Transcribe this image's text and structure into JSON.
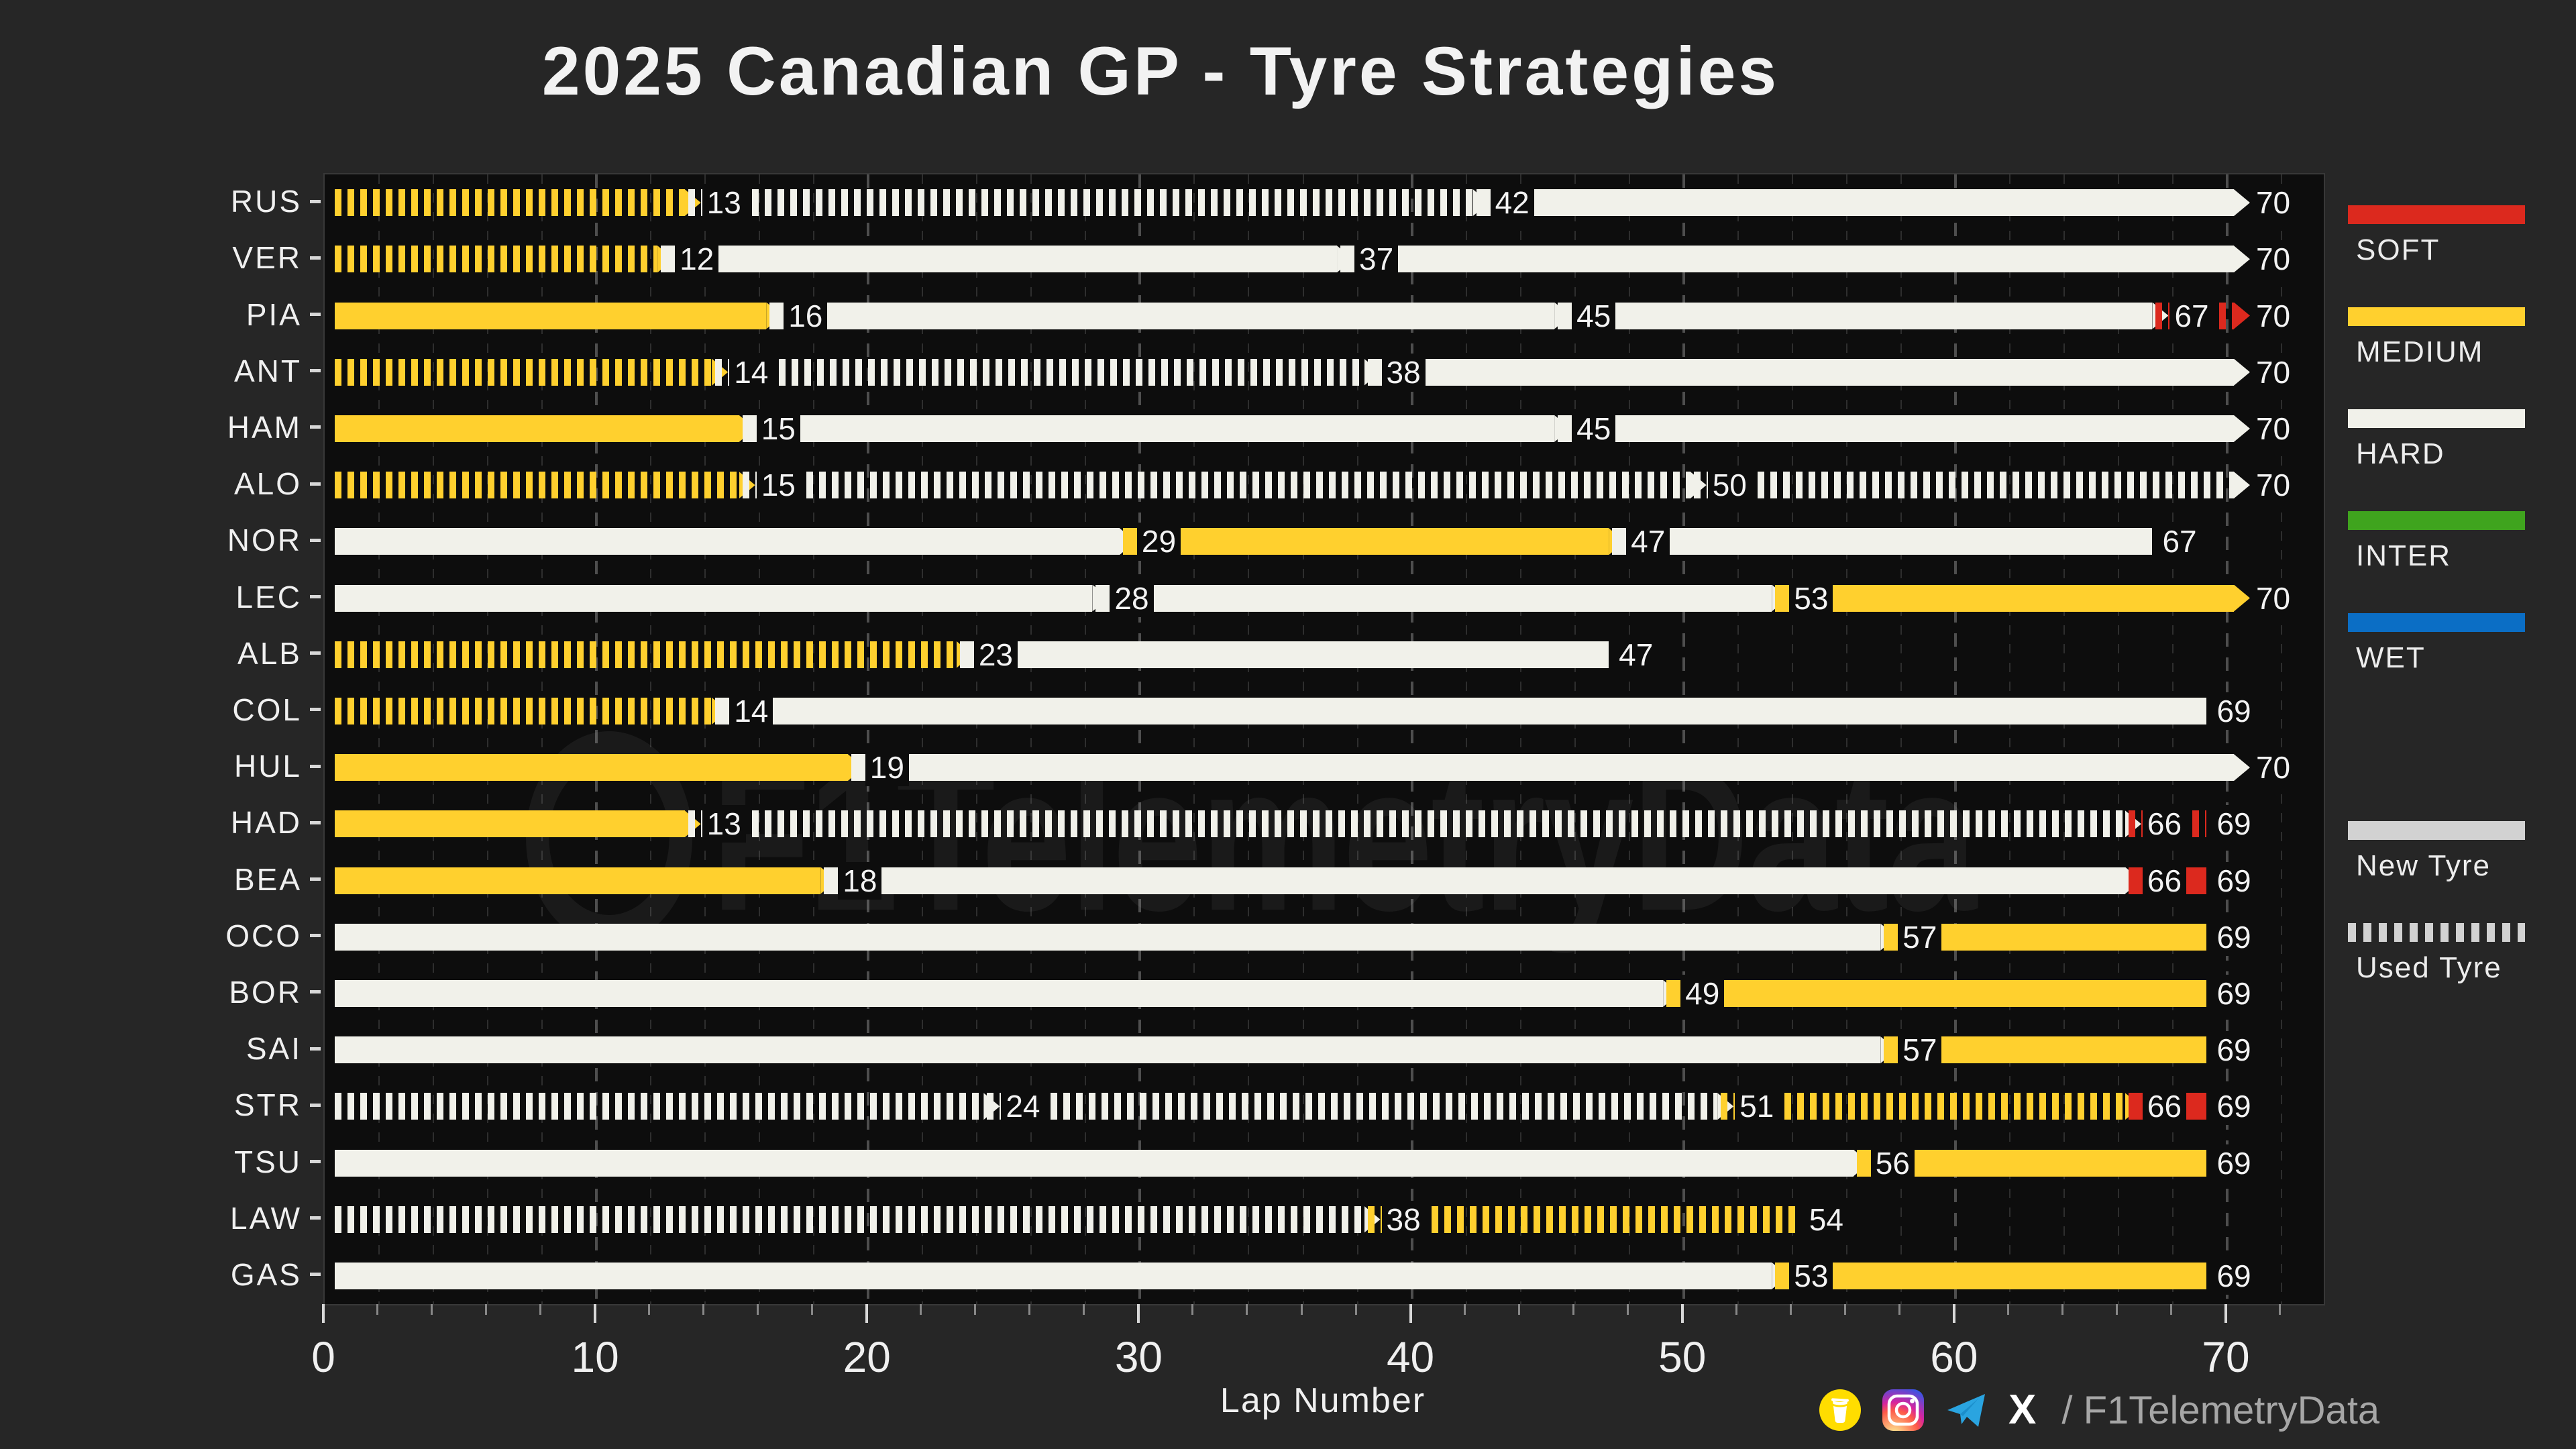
{
  "page": {
    "title": "2025 Canadian GP - Tyre Strategies",
    "xlabel": "Lap Number",
    "watermark_text": "F1TelemetryData",
    "footer_handle": "/ F1TelemetryData",
    "footer_icons": [
      "buymeacoffee-icon",
      "instagram-icon",
      "telegram-icon",
      "x-icon"
    ]
  },
  "colors": {
    "soft": "#dc291e",
    "medium": "#ffd02e",
    "hard": "#f1f1ea",
    "inter": "#3fa41e",
    "wet": "#0b6ec5",
    "legend_gray": "#d2d2d2",
    "fig_bg": "#262626",
    "plot_bg": "#0d0d0d"
  },
  "legend": {
    "compounds": [
      {
        "label": "SOFT",
        "key": "soft"
      },
      {
        "label": "MEDIUM",
        "key": "medium"
      },
      {
        "label": "HARD",
        "key": "hard"
      },
      {
        "label": "INTER",
        "key": "inter"
      },
      {
        "label": "WET",
        "key": "wet"
      }
    ],
    "usage": [
      {
        "label": "New Tyre",
        "style": "solid"
      },
      {
        "label": "Used Tyre",
        "style": "dashed"
      }
    ]
  },
  "chart_data": {
    "type": "bar",
    "title": "2025 Canadian GP - Tyre Strategies",
    "xlabel": "Lap Number",
    "xlim": [
      0,
      73.5
    ],
    "xticks": [
      0,
      10,
      20,
      30,
      40,
      50,
      60,
      70
    ],
    "minor_tick_step": 2,
    "grid": "vertical-dashed",
    "legend_position": "right",
    "drivers": [
      {
        "code": "RUS",
        "stints": [
          {
            "compound": "medium",
            "used": true,
            "start_lap": 0,
            "end_lap": 13
          },
          {
            "compound": "hard",
            "used": true,
            "start_lap": 13,
            "end_lap": 42
          },
          {
            "compound": "hard",
            "used": false,
            "start_lap": 42,
            "end_lap": 70
          }
        ]
      },
      {
        "code": "VER",
        "stints": [
          {
            "compound": "medium",
            "used": true,
            "start_lap": 0,
            "end_lap": 12
          },
          {
            "compound": "hard",
            "used": false,
            "start_lap": 12,
            "end_lap": 37
          },
          {
            "compound": "hard",
            "used": false,
            "start_lap": 37,
            "end_lap": 70
          }
        ]
      },
      {
        "code": "PIA",
        "stints": [
          {
            "compound": "medium",
            "used": false,
            "start_lap": 0,
            "end_lap": 16
          },
          {
            "compound": "hard",
            "used": false,
            "start_lap": 16,
            "end_lap": 45
          },
          {
            "compound": "hard",
            "used": false,
            "start_lap": 45,
            "end_lap": 67
          },
          {
            "compound": "soft",
            "used": true,
            "start_lap": 67,
            "end_lap": 70
          }
        ]
      },
      {
        "code": "ANT",
        "stints": [
          {
            "compound": "medium",
            "used": true,
            "start_lap": 0,
            "end_lap": 14
          },
          {
            "compound": "hard",
            "used": true,
            "start_lap": 14,
            "end_lap": 38
          },
          {
            "compound": "hard",
            "used": false,
            "start_lap": 38,
            "end_lap": 70
          }
        ]
      },
      {
        "code": "HAM",
        "stints": [
          {
            "compound": "medium",
            "used": false,
            "start_lap": 0,
            "end_lap": 15
          },
          {
            "compound": "hard",
            "used": false,
            "start_lap": 15,
            "end_lap": 45
          },
          {
            "compound": "hard",
            "used": false,
            "start_lap": 45,
            "end_lap": 70
          }
        ]
      },
      {
        "code": "ALO",
        "stints": [
          {
            "compound": "medium",
            "used": true,
            "start_lap": 0,
            "end_lap": 15
          },
          {
            "compound": "hard",
            "used": true,
            "start_lap": 15,
            "end_lap": 50
          },
          {
            "compound": "hard",
            "used": true,
            "start_lap": 50,
            "end_lap": 70
          }
        ]
      },
      {
        "code": "NOR",
        "stints": [
          {
            "compound": "hard",
            "used": false,
            "start_lap": 0,
            "end_lap": 29
          },
          {
            "compound": "medium",
            "used": false,
            "start_lap": 29,
            "end_lap": 47
          },
          {
            "compound": "hard",
            "used": false,
            "start_lap": 47,
            "end_lap": 67
          }
        ]
      },
      {
        "code": "LEC",
        "stints": [
          {
            "compound": "hard",
            "used": false,
            "start_lap": 0,
            "end_lap": 28
          },
          {
            "compound": "hard",
            "used": false,
            "start_lap": 28,
            "end_lap": 53
          },
          {
            "compound": "medium",
            "used": false,
            "start_lap": 53,
            "end_lap": 70
          }
        ]
      },
      {
        "code": "ALB",
        "stints": [
          {
            "compound": "medium",
            "used": true,
            "start_lap": 0,
            "end_lap": 23
          },
          {
            "compound": "hard",
            "used": false,
            "start_lap": 23,
            "end_lap": 47
          }
        ]
      },
      {
        "code": "COL",
        "stints": [
          {
            "compound": "medium",
            "used": true,
            "start_lap": 0,
            "end_lap": 14
          },
          {
            "compound": "hard",
            "used": false,
            "start_lap": 14,
            "end_lap": 69
          }
        ]
      },
      {
        "code": "HUL",
        "stints": [
          {
            "compound": "medium",
            "used": false,
            "start_lap": 0,
            "end_lap": 19
          },
          {
            "compound": "hard",
            "used": false,
            "start_lap": 19,
            "end_lap": 70
          }
        ]
      },
      {
        "code": "HAD",
        "stints": [
          {
            "compound": "medium",
            "used": false,
            "start_lap": 0,
            "end_lap": 13
          },
          {
            "compound": "hard",
            "used": true,
            "start_lap": 13,
            "end_lap": 66
          },
          {
            "compound": "soft",
            "used": true,
            "start_lap": 66,
            "end_lap": 69
          }
        ]
      },
      {
        "code": "BEA",
        "stints": [
          {
            "compound": "medium",
            "used": false,
            "start_lap": 0,
            "end_lap": 18
          },
          {
            "compound": "hard",
            "used": false,
            "start_lap": 18,
            "end_lap": 66
          },
          {
            "compound": "soft",
            "used": false,
            "start_lap": 66,
            "end_lap": 69
          }
        ]
      },
      {
        "code": "OCO",
        "stints": [
          {
            "compound": "hard",
            "used": false,
            "start_lap": 0,
            "end_lap": 57
          },
          {
            "compound": "medium",
            "used": false,
            "start_lap": 57,
            "end_lap": 69
          }
        ]
      },
      {
        "code": "BOR",
        "stints": [
          {
            "compound": "hard",
            "used": false,
            "start_lap": 0,
            "end_lap": 49
          },
          {
            "compound": "medium",
            "used": false,
            "start_lap": 49,
            "end_lap": 69
          }
        ]
      },
      {
        "code": "SAI",
        "stints": [
          {
            "compound": "hard",
            "used": false,
            "start_lap": 0,
            "end_lap": 57
          },
          {
            "compound": "medium",
            "used": false,
            "start_lap": 57,
            "end_lap": 69
          }
        ]
      },
      {
        "code": "STR",
        "stints": [
          {
            "compound": "hard",
            "used": true,
            "start_lap": 0,
            "end_lap": 24
          },
          {
            "compound": "hard",
            "used": true,
            "start_lap": 24,
            "end_lap": 51
          },
          {
            "compound": "medium",
            "used": true,
            "start_lap": 51,
            "end_lap": 66
          },
          {
            "compound": "soft",
            "used": false,
            "start_lap": 66,
            "end_lap": 69
          }
        ]
      },
      {
        "code": "TSU",
        "stints": [
          {
            "compound": "hard",
            "used": false,
            "start_lap": 0,
            "end_lap": 56
          },
          {
            "compound": "medium",
            "used": false,
            "start_lap": 56,
            "end_lap": 69
          }
        ]
      },
      {
        "code": "LAW",
        "stints": [
          {
            "compound": "hard",
            "used": true,
            "start_lap": 0,
            "end_lap": 38
          },
          {
            "compound": "medium",
            "used": true,
            "start_lap": 38,
            "end_lap": 54
          }
        ]
      },
      {
        "code": "GAS",
        "stints": [
          {
            "compound": "hard",
            "used": false,
            "start_lap": 0,
            "end_lap": 53
          },
          {
            "compound": "medium",
            "used": false,
            "start_lap": 53,
            "end_lap": 69
          }
        ]
      }
    ]
  }
}
